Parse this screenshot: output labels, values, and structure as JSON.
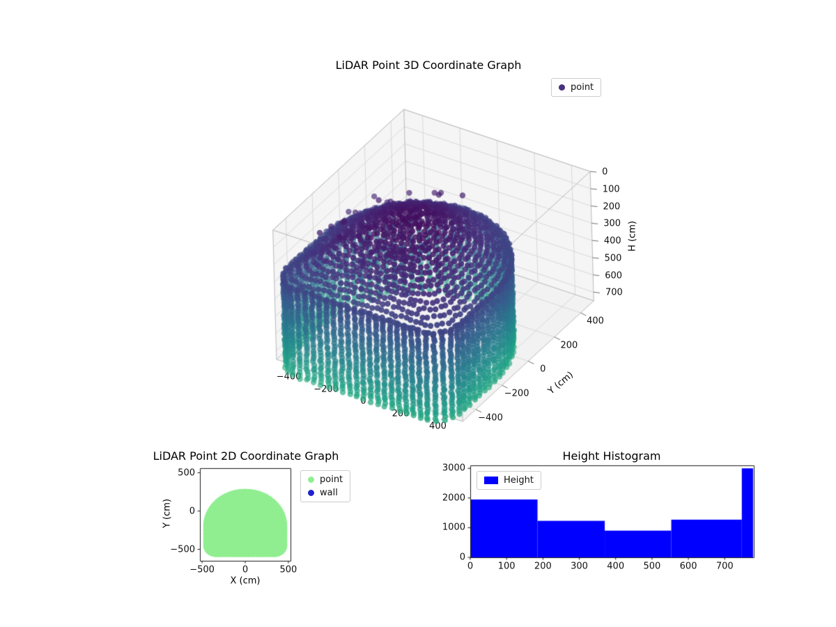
{
  "chart_data": [
    {
      "id": "lidar-3d",
      "type": "scatter3d",
      "title": "LiDAR Point 3D Coordinate Graph",
      "legend": {
        "entries": [
          {
            "label": "point",
            "color": "#46327e"
          }
        ],
        "position": "upper-right-outside"
      },
      "axes": {
        "x": {
          "label": "",
          "lim": [
            -500,
            500
          ],
          "ticks": [
            -400,
            -200,
            0,
            200,
            400
          ]
        },
        "y": {
          "label": "Y (cm)",
          "lim": [
            -500,
            500
          ],
          "ticks": [
            -400,
            -200,
            0,
            200,
            400
          ]
        },
        "z": {
          "label": "H (cm)",
          "lim": [
            0,
            750
          ],
          "ticks": [
            0,
            100,
            200,
            300,
            400,
            500,
            600,
            700
          ],
          "inverted": true
        }
      },
      "colormap": "viridis",
      "point_cloud": {
        "description": "Room scan point cloud: dome-like ceiling cap of concentric rings (H ~0-235 cm), vertical wall point columns around a stadium-shaped footprint (H ~235-750 cm), sparse interior noise points near the ceiling",
        "footprint": {
          "shape": "stadium",
          "dome_center": [
            0,
            -200
          ],
          "dome_radius": 460,
          "flat_bottom_y": -570,
          "half_width": 460,
          "corner_radius": 120
        },
        "wall_column_spacing_cm": 38,
        "wall_point_step_cm": 17,
        "wall_height_range_cm": [
          235,
          745
        ],
        "ceiling_rings": 17,
        "ceiling_height_range_cm": [
          10,
          238
        ],
        "noise_points": 170,
        "height_color_range_cm": [
          0,
          750
        ]
      }
    },
    {
      "id": "lidar-2d",
      "type": "scatter",
      "title": "LiDAR Point 2D Coordinate Graph",
      "xlabel": "X (cm)",
      "ylabel": "Y (cm)",
      "xlim": [
        -525,
        525
      ],
      "ylim": [
        -650,
        560
      ],
      "xticks": [
        -500,
        0,
        500
      ],
      "yticks": [
        -500,
        0,
        500
      ],
      "legend": {
        "entries": [
          {
            "label": "point",
            "color": "#90ee90"
          },
          {
            "label": "wall",
            "color": "#2121cc"
          }
        ],
        "position": "upper-right-outside"
      },
      "footprint_fill": "#90ee90"
    },
    {
      "id": "height-histogram",
      "type": "bar",
      "title": "Height Histogram",
      "legend": {
        "entries": [
          {
            "label": "Height",
            "color": "#0000ff"
          }
        ],
        "position": "upper-left-inside"
      },
      "bar_color": "#0000ff",
      "bin_edges": [
        0,
        185,
        370,
        553,
        747,
        778
      ],
      "counts": [
        1950,
        1230,
        900,
        1270,
        3000
      ],
      "xlim": [
        0,
        780
      ],
      "ylim": [
        0,
        3100
      ],
      "xticks": [
        0,
        100,
        200,
        300,
        400,
        500,
        600,
        700
      ],
      "yticks": [
        0,
        1000,
        2000,
        3000
      ]
    }
  ]
}
